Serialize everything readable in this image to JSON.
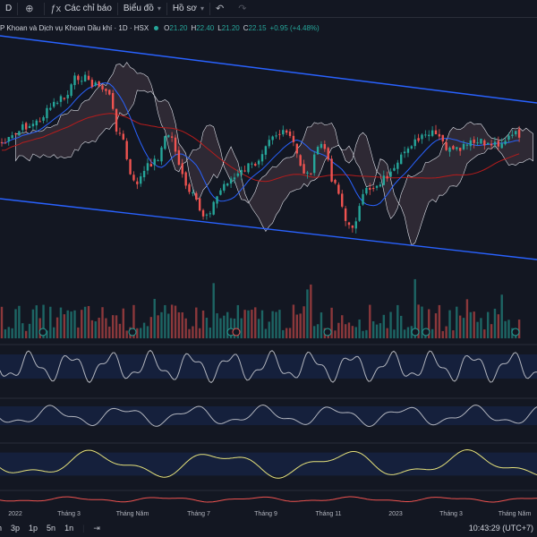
{
  "toolbar": {
    "interval": "D",
    "indicators_label": "Các chỉ báo",
    "chart_type_label": "Biểu đồ",
    "profile_label": "Hồ sơ"
  },
  "legend": {
    "symbol_name": "P Khoan và Dịch vụ Khoan Dầu khí · 1D · HSX",
    "open_label": "O",
    "open": "21.20",
    "high_label": "H",
    "high": "22.40",
    "low_label": "L",
    "low": "21.20",
    "close_label": "C",
    "close": "22.15",
    "change": "+0.95 (+4.48%)"
  },
  "time_axis": [
    "2022",
    "Tháng 3",
    "Tháng Năm",
    "Tháng 7",
    "Tháng 9",
    "Tháng 11",
    "2023",
    "Tháng 3",
    "Tháng Năm"
  ],
  "bottom": {
    "ranges": [
      "3p",
      "1p",
      "5n",
      "1n"
    ],
    "clock": "10:43:29 (UTC+7)"
  },
  "event_markers": [
    "F",
    "F",
    "F",
    "F",
    "S",
    "F",
    "F",
    "F",
    "F"
  ],
  "colors": {
    "up": "#26a69a",
    "down": "#ef5350",
    "channel": "#2962ff",
    "ma_fast": "#2962ff",
    "ma_slow": "#b71c1c",
    "cloud_line": "#e0e3eb",
    "osc_line": "#b2b5be",
    "yellow_osc": "#e5e17a",
    "red_osc": "#ef5350"
  }
}
